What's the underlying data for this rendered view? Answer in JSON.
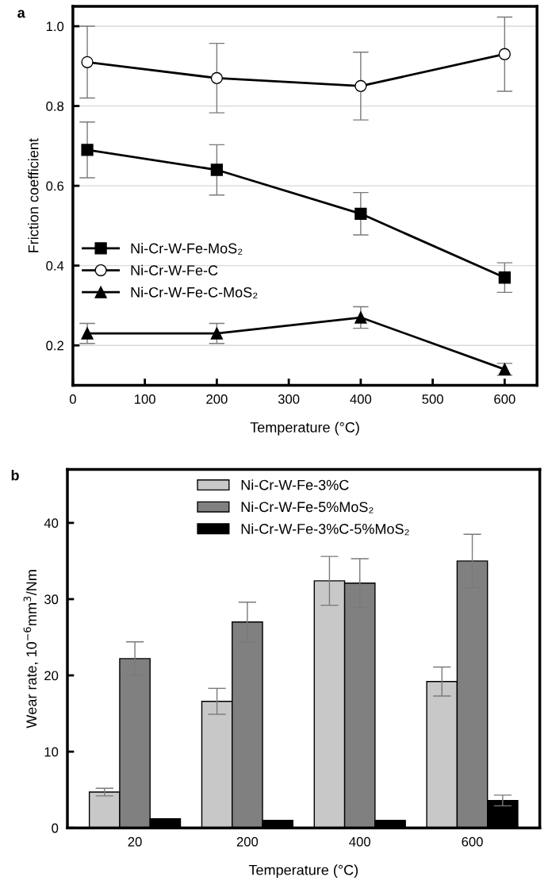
{
  "chart_data": [
    {
      "type": "line",
      "title": "a",
      "xlabel": "Temperature (°C)",
      "ylabel": "Friction coefficient",
      "x": [
        20,
        200,
        400,
        600
      ],
      "xlim": [
        0,
        645
      ],
      "xticks": [
        0,
        100,
        200,
        300,
        400,
        500,
        600
      ],
      "ylim": [
        0.1,
        1.05
      ],
      "yticks": [
        0.2,
        0.4,
        0.6,
        0.8,
        {
          "value": 1,
          "label": "1.0"
        }
      ],
      "grid": "y",
      "legend": "center left",
      "line_style": "solid",
      "series": [
        {
          "name": "Ni-Cr-W-Fe-MoS₂",
          "color": "#000000",
          "marker": "square",
          "values": [
            0.69,
            0.64,
            0.53,
            0.37
          ],
          "errors": [
            0.07,
            0.063,
            0.053,
            0.037
          ]
        },
        {
          "name": "Ni-Cr-W-Fe-C",
          "color": "#000000",
          "marker": "circle",
          "values": [
            0.91,
            0.87,
            0.85,
            0.93
          ],
          "errors": [
            0.09,
            0.087,
            0.085,
            0.093
          ]
        },
        {
          "name": "Ni-Cr-W-Fe-C-MoS₂",
          "color": "#000000",
          "marker": "triangle",
          "values": [
            0.23,
            0.23,
            0.27,
            0.14
          ],
          "errors": [
            0.025,
            0.025,
            0.027,
            0.015
          ]
        }
      ]
    },
    {
      "type": "bar",
      "title": "b",
      "xlabel": "Temperature (°C)",
      "ylabel": "Wear rate, 10$^{−6}$mm$^{3}$/Nm",
      "categories": [
        "20",
        "200",
        "400",
        "600"
      ],
      "ylim": [
        0,
        47
      ],
      "yticks": [
        0,
        10,
        20,
        30,
        40
      ],
      "legend": "top",
      "series": [
        {
          "name": "Ni-Cr-W-Fe-3%C",
          "color": "#c8c8c8",
          "values": [
            4.7,
            16.6,
            32.4,
            19.2
          ],
          "errors": [
            0.5,
            1.7,
            3.2,
            1.9
          ]
        },
        {
          "name": "Ni-Cr-W-Fe-5%MoS₂",
          "color": "#808080",
          "values": [
            22.2,
            27.0,
            32.1,
            35.0
          ],
          "errors": [
            2.2,
            2.6,
            3.2,
            3.5
          ]
        },
        {
          "name": "Ni-Cr-W-Fe-3%C-5%MoS₂",
          "color": "#000000",
          "values": [
            1.2,
            1.0,
            1.0,
            3.6
          ],
          "errors": [
            null,
            null,
            null,
            0.7
          ]
        }
      ]
    }
  ]
}
